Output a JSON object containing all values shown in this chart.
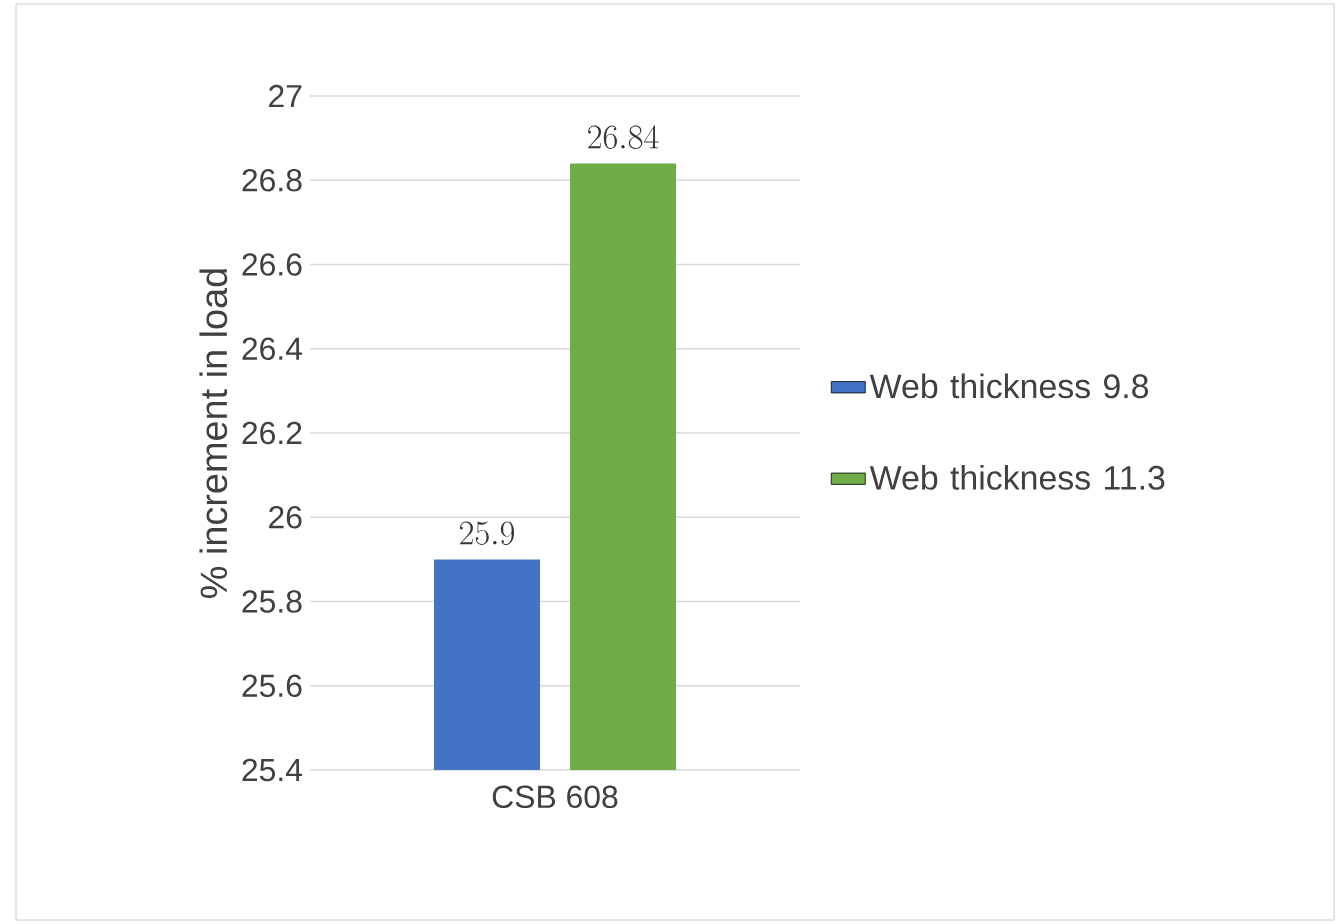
{
  "chart_data": {
    "type": "bar",
    "ylabel": "% increment in load",
    "categories": [
      "CSB 608"
    ],
    "series": [
      {
        "name": "Web thickness 9.8",
        "color": "#4472c4",
        "values": [
          25.9
        ]
      },
      {
        "name": "Web thickness 11.3",
        "color": "#70ad47",
        "values": [
          26.84
        ]
      }
    ],
    "ylim": [
      25.4,
      27
    ],
    "yticks": [
      25.4,
      25.6,
      25.8,
      26,
      26.2,
      26.4,
      26.6,
      26.8,
      27
    ],
    "grid": "y",
    "legend": "right",
    "data_labels": true
  }
}
